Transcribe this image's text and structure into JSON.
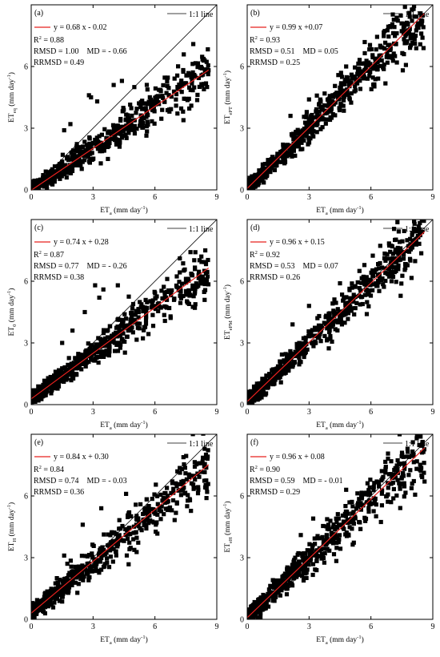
{
  "chart_data": [
    {
      "type": "scatter",
      "panel_label": "(a)",
      "ylabel": {
        "base": "ET",
        "sub": "eq",
        "unit": "(mm day",
        "sup": "-1",
        "close": ")"
      },
      "xlabel": {
        "base": "ET",
        "sub": "a",
        "unit": "(mm day",
        "sup": "-1",
        "close": ")"
      },
      "xlim": [
        0,
        9
      ],
      "ylim": [
        0,
        9
      ],
      "xticks": [
        "0",
        "3",
        "6",
        "9"
      ],
      "yticks": [
        "0",
        "3",
        "6"
      ],
      "legend_one_to_one": "1:1 line",
      "fit": {
        "slope": 0.68,
        "intercept": -0.02
      },
      "stats": {
        "equation": "y = 0.68 x - 0.02",
        "r2_base": "R",
        "r2_sup": "2",
        "r2_value": " = 0.88",
        "rmsd_md": "RMSD = 1.00    MD = - 0.66",
        "rrmsd": "RRMSD = 0.49"
      },
      "scatter_summary": {
        "x_range": [
          0,
          8.6
        ],
        "spread": 0.4,
        "outliers": [
          [
            2.8,
            4.6
          ],
          [
            3.2,
            4.3
          ],
          [
            4.0,
            5.1
          ],
          [
            4.4,
            5.3
          ],
          [
            2.9,
            4.5
          ],
          [
            5.0,
            5.0
          ],
          [
            1.9,
            3.2
          ],
          [
            1.6,
            2.9
          ]
        ]
      }
    },
    {
      "type": "scatter",
      "panel_label": "(b)",
      "ylabel": {
        "base": "ET",
        "sub": "ePT",
        "unit": "(mm day",
        "sup": "-1",
        "close": ")"
      },
      "xlabel": {
        "base": "ET",
        "sub": "a",
        "unit": "(mm day",
        "sup": "-1",
        "close": ")"
      },
      "xlim": [
        0,
        9
      ],
      "ylim": [
        0,
        9
      ],
      "xticks": [
        "0",
        "3",
        "6",
        "9"
      ],
      "yticks": [
        "0",
        "3",
        "6"
      ],
      "legend_one_to_one": "1:1 line",
      "fit": {
        "slope": 0.99,
        "intercept": 0.07
      },
      "stats": {
        "equation": "y = 0.99 x +0.07",
        "r2_base": "R",
        "r2_sup": "2",
        "r2_value": " = 0.93",
        "rmsd_md": "RMSD = 0.51    MD = 0.05",
        "rrmsd": "RRMSD = 0.25"
      },
      "scatter_summary": {
        "x_range": [
          0,
          8.6
        ],
        "spread": 0.45,
        "outliers": [
          [
            2.1,
            3.6
          ],
          [
            3.0,
            4.4
          ],
          [
            4.8,
            6.0
          ],
          [
            7.6,
            6.6
          ],
          [
            8.5,
            7.4
          ]
        ]
      }
    },
    {
      "type": "scatter",
      "panel_label": "(c)",
      "ylabel": {
        "base": "ET",
        "sub": "0",
        "unit": "(mm day",
        "sup": "-1",
        "close": ")"
      },
      "xlabel": {
        "base": "ET",
        "sub": "a",
        "unit": "(mm day",
        "sup": "-1",
        "close": ")"
      },
      "xlim": [
        0,
        9
      ],
      "ylim": [
        0,
        9
      ],
      "xticks": [
        "0",
        "3",
        "6",
        "9"
      ],
      "yticks": [
        "0",
        "3",
        "6"
      ],
      "legend_one_to_one": "1:1 line",
      "fit": {
        "slope": 0.74,
        "intercept": 0.28
      },
      "stats": {
        "equation": "y = 0.74 x + 0.28",
        "r2_base": "R",
        "r2_sup": "2",
        "r2_value": " = 0.87",
        "rmsd_md": "RMSD = 0.77    MD = - 0.26",
        "rrmsd": "RRMSD = 0.38"
      },
      "scatter_summary": {
        "x_range": [
          0,
          8.6
        ],
        "spread": 0.4,
        "outliers": [
          [
            3.1,
            5.8
          ],
          [
            3.5,
            5.6
          ],
          [
            3.3,
            5.2
          ],
          [
            2.6,
            4.5
          ],
          [
            4.2,
            5.8
          ],
          [
            1.5,
            3.0
          ],
          [
            2.0,
            3.6
          ]
        ]
      }
    },
    {
      "type": "scatter",
      "panel_label": "(d)",
      "ylabel": {
        "base": "ET",
        "sub": "ePM",
        "unit": "(mm day",
        "sup": "-1",
        "close": ")"
      },
      "xlabel": {
        "base": "ET",
        "sub": "a",
        "unit": "(mm day",
        "sup": "-1",
        "close": ")"
      },
      "xlim": [
        0,
        9
      ],
      "ylim": [
        0,
        9
      ],
      "xticks": [
        "0",
        "3",
        "6",
        "9"
      ],
      "yticks": [
        "0",
        "3",
        "6"
      ],
      "legend_one_to_one": "1:1 line",
      "fit": {
        "slope": 0.96,
        "intercept": 0.15
      },
      "stats": {
        "equation": "y = 0.96 x + 0.15",
        "r2_base": "R",
        "r2_sup": "2",
        "r2_value": " = 0.92",
        "rmsd_md": "RMSD = 0.53    MD = 0.07",
        "rrmsd": "RRMSD = 0.26"
      },
      "scatter_summary": {
        "x_range": [
          0,
          8.6
        ],
        "spread": 0.45,
        "outliers": [
          [
            2.2,
            3.9
          ],
          [
            3.0,
            4.8
          ],
          [
            4.5,
            5.9
          ],
          [
            8.2,
            7.9
          ],
          [
            7.0,
            6.0
          ]
        ]
      }
    },
    {
      "type": "scatter",
      "panel_label": "(e)",
      "ylabel": {
        "base": "ET",
        "sub": "H",
        "unit": "(mm day",
        "sup": "-1",
        "close": ")"
      },
      "xlabel": {
        "base": "ET",
        "sub": "a",
        "unit": "(mm day",
        "sup": "-1",
        "close": ")"
      },
      "xlim": [
        0,
        9
      ],
      "ylim": [
        0,
        9
      ],
      "xticks": [
        "0",
        "3",
        "6",
        "9"
      ],
      "yticks": [
        "0",
        "3",
        "6"
      ],
      "legend_one_to_one": "1:1 line",
      "fit": {
        "slope": 0.84,
        "intercept": 0.3
      },
      "stats": {
        "equation": "y = 0.84 x + 0.30",
        "r2_base": "R",
        "r2_sup": "2",
        "r2_value": " = 0.84",
        "rmsd_md": "RMSD = 0.74    MD = - 0.03",
        "rrmsd": "RRMSD = 0.36"
      },
      "scatter_summary": {
        "x_range": [
          0,
          8.6
        ],
        "spread": 0.45,
        "outliers": [
          [
            2.5,
            4.6
          ],
          [
            3.4,
            5.4
          ],
          [
            4.6,
            6.1
          ],
          [
            7.4,
            6.4
          ],
          [
            8.5,
            5.9
          ],
          [
            1.6,
            3.1
          ]
        ]
      }
    },
    {
      "type": "scatter",
      "panel_label": "(f)",
      "ylabel": {
        "base": "ET",
        "sub": "eH",
        "unit": "(mm day",
        "sup": "-1",
        "close": ")"
      },
      "xlabel": {
        "base": "ET",
        "sub": "a",
        "unit": "(mm day",
        "sup": "-1",
        "close": ")"
      },
      "xlim": [
        0,
        9
      ],
      "ylim": [
        0,
        9
      ],
      "xticks": [
        "0",
        "3",
        "6",
        "9"
      ],
      "yticks": [
        "0",
        "3",
        "6"
      ],
      "legend_one_to_one": "1:1 line",
      "fit": {
        "slope": 0.96,
        "intercept": 0.08
      },
      "stats": {
        "equation": "y = 0.96 x + 0.08",
        "r2_base": "R",
        "r2_sup": "2",
        "r2_value": " = 0.90",
        "rmsd_md": "RMSD = 0.59    MD = - 0.01",
        "rrmsd": "RRMSD = 0.29"
      },
      "scatter_summary": {
        "x_range": [
          0,
          8.6
        ],
        "spread": 0.5,
        "outliers": [
          [
            2.6,
            4.1
          ],
          [
            3.2,
            4.9
          ],
          [
            4.8,
            6.3
          ],
          [
            8.0,
            6.6
          ],
          [
            8.6,
            6.7
          ],
          [
            7.5,
            6.9
          ]
        ]
      }
    }
  ]
}
